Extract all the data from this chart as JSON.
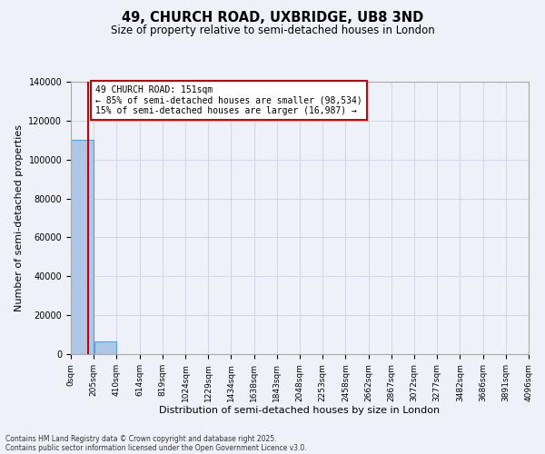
{
  "title": "49, CHURCH ROAD, UXBRIDGE, UB8 3ND",
  "subtitle": "Size of property relative to semi-detached houses in London",
  "xlabel": "Distribution of semi-detached houses by size in London",
  "ylabel": "Number of semi-detached properties",
  "footnote1": "Contains HM Land Registry data © Crown copyright and database right 2025.",
  "footnote2": "Contains public sector information licensed under the Open Government Licence v3.0.",
  "annotation_line1": "49 CHURCH ROAD: 151sqm",
  "annotation_line2": "← 85% of semi-detached houses are smaller (98,534)",
  "annotation_line3": "15% of semi-detached houses are larger (16,987) →",
  "bar_color": "#aec6e8",
  "bar_edge_color": "#5a9fd4",
  "vline_color": "#cc0000",
  "annotation_box_color": "#cc0000",
  "grid_color": "#d0d8e8",
  "background_color": "#eef2f8",
  "bin_edges": [
    0,
    205,
    410,
    614,
    819,
    1024,
    1229,
    1434,
    1638,
    1843,
    2048,
    2253,
    2458,
    2662,
    2867,
    3072,
    3277,
    3482,
    3686,
    3891,
    4096
  ],
  "bin_labels": [
    "0sqm",
    "205sqm",
    "410sqm",
    "614sqm",
    "819sqm",
    "1024sqm",
    "1229sqm",
    "1434sqm",
    "1638sqm",
    "1843sqm",
    "2048sqm",
    "2253sqm",
    "2458sqm",
    "2662sqm",
    "2867sqm",
    "3072sqm",
    "3277sqm",
    "3482sqm",
    "3686sqm",
    "3891sqm",
    "4096sqm"
  ],
  "bar_heights": [
    110000,
    6500,
    0,
    0,
    0,
    0,
    0,
    0,
    0,
    0,
    0,
    0,
    0,
    0,
    0,
    0,
    0,
    0,
    0,
    0
  ],
  "property_size": 151,
  "ylim": [
    0,
    140000
  ],
  "ytick_values": [
    0,
    20000,
    40000,
    60000,
    80000,
    100000,
    120000,
    140000
  ]
}
